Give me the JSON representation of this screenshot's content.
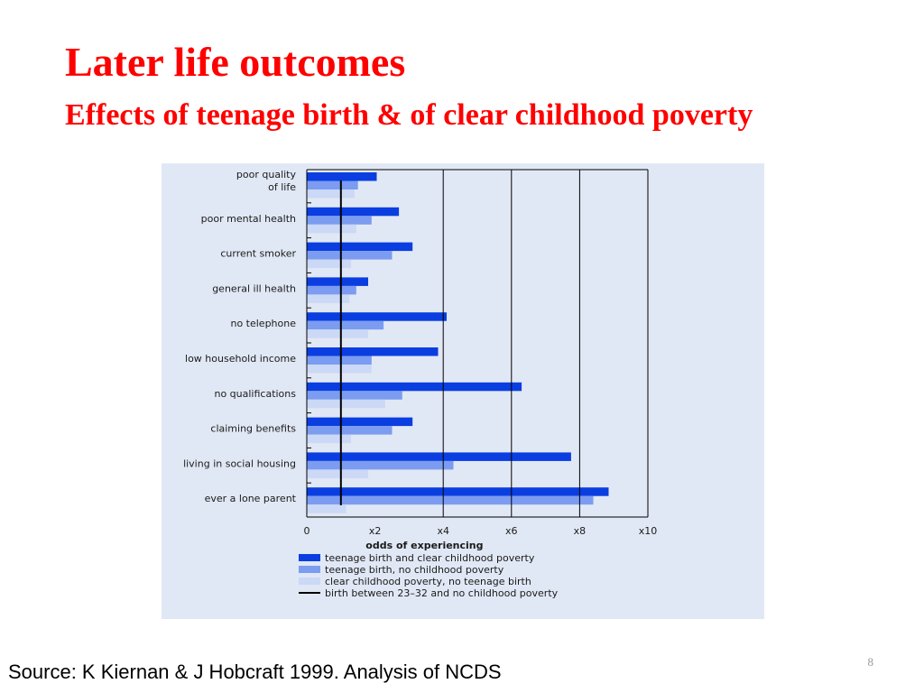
{
  "slide": {
    "title": "Later life outcomes",
    "subtitle": "Effects of teenage birth & of clear childhood poverty",
    "source": "Source: K Kiernan & J Hobcraft 1999. Analysis of NCDS",
    "slide_number": "8"
  },
  "colors": {
    "title": "#ff0000",
    "panel_background": "#e1e8f5",
    "series_dark": "#0a3ee0",
    "series_mid": "#7b9cf0",
    "series_light": "#cbd8f6",
    "reference_line": "#000000"
  },
  "chart_data": {
    "type": "bar",
    "orientation": "horizontal",
    "title": "",
    "xlabel": "odds of experiencing",
    "ylabel": "",
    "xlim": [
      0,
      10
    ],
    "x_ticks": [
      0,
      2,
      4,
      6,
      8,
      10
    ],
    "x_tick_labels": [
      "0",
      "x2",
      "x4",
      "x6",
      "x8",
      "x10"
    ],
    "grid": "vertical lines at x4, x6, x8",
    "legend_position": "bottom",
    "categories": [
      "poor quality of life",
      "poor mental health",
      "current smoker",
      "general ill health",
      "no telephone",
      "low household income",
      "no qualifications",
      "claiming benefits",
      "living in social housing",
      "ever a lone parent"
    ],
    "category_label_lines": [
      [
        "poor quality",
        "of life"
      ],
      [
        "poor mental health"
      ],
      [
        "current smoker"
      ],
      [
        "general ill health"
      ],
      [
        "no telephone"
      ],
      [
        "low household income"
      ],
      [
        "no qualifications"
      ],
      [
        "claiming benefits"
      ],
      [
        "living in social housing"
      ],
      [
        "ever a lone parent"
      ]
    ],
    "series": [
      {
        "name": "teenage birth and clear childhood poverty",
        "color": "#0a3ee0",
        "values": [
          2.05,
          2.7,
          3.1,
          1.8,
          4.1,
          3.85,
          6.3,
          3.1,
          7.75,
          8.85
        ]
      },
      {
        "name": "teenage birth, no childhood poverty",
        "color": "#7b9cf0",
        "values": [
          1.5,
          1.9,
          2.5,
          1.45,
          2.25,
          1.9,
          2.8,
          2.5,
          4.3,
          8.4
        ]
      },
      {
        "name": "clear childhood poverty, no teenage birth",
        "color": "#cbd8f6",
        "values": [
          1.4,
          1.45,
          1.3,
          1.25,
          1.8,
          1.9,
          2.3,
          1.3,
          1.8,
          1.15
        ]
      }
    ],
    "reference_line": {
      "name": "birth between 23–32 and no childhood poverty",
      "value": 1
    }
  }
}
